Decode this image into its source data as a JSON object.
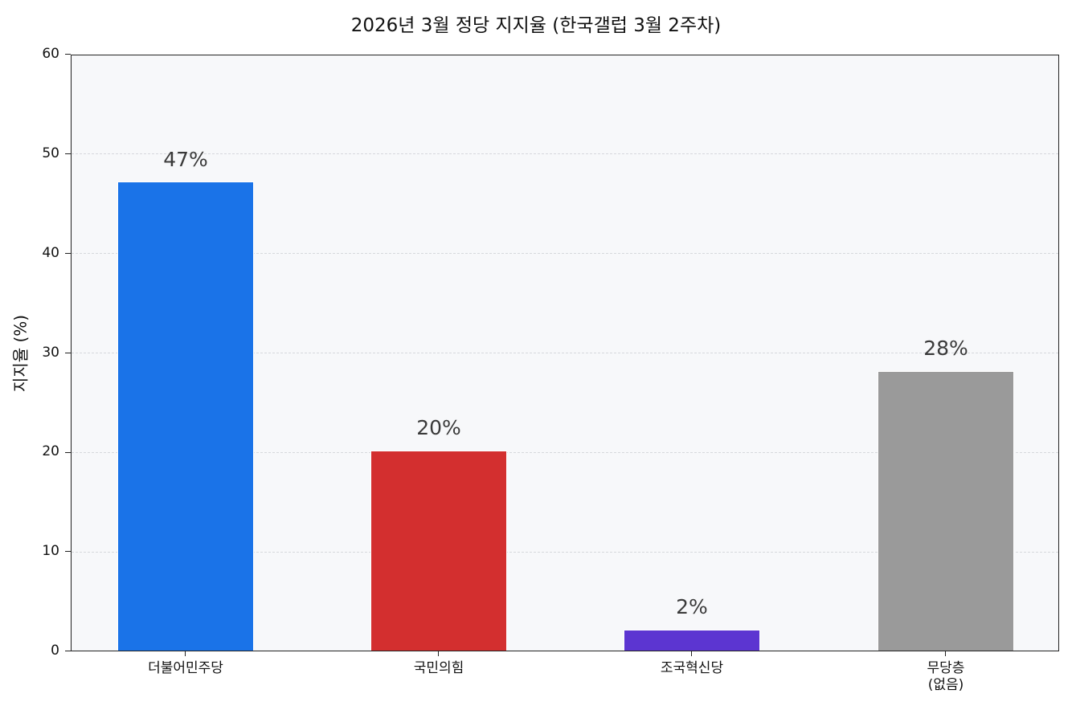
{
  "chart_data": {
    "type": "bar",
    "title": "2026년 3월 정당 지지율 (한국갤럽 3월 2주차)",
    "xlabel": "",
    "ylabel": "지지율 (%)",
    "ylim": [
      0,
      60
    ],
    "yticks": [
      0,
      10,
      20,
      30,
      40,
      50,
      60
    ],
    "grid": {
      "y": true,
      "style": "dashed"
    },
    "legend": null,
    "categories": [
      "더불어민주당",
      "국민의힘",
      "조국혁신당",
      "무당층\n(없음)"
    ],
    "values": [
      47,
      20,
      2,
      28
    ],
    "data_labels": [
      "47%",
      "20%",
      "2%",
      "28%"
    ],
    "colors": [
      "#1a73e8",
      "#d32f2f",
      "#5c35d1",
      "#9a9a9a"
    ]
  },
  "ytick_labels": [
    "0",
    "10",
    "20",
    "30",
    "40",
    "50",
    "60"
  ]
}
